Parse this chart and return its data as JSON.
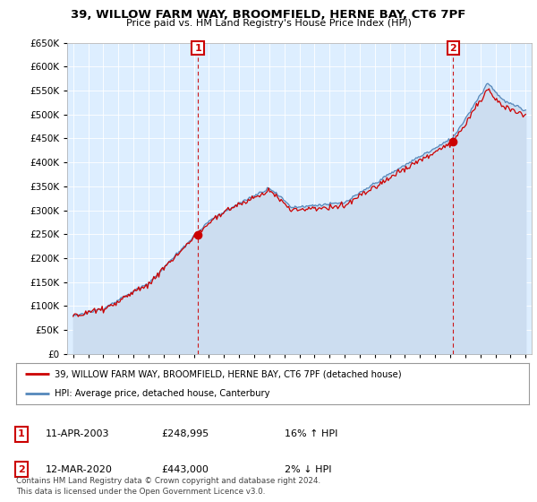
{
  "title": "39, WILLOW FARM WAY, BROOMFIELD, HERNE BAY, CT6 7PF",
  "subtitle": "Price paid vs. HM Land Registry's House Price Index (HPI)",
  "ylim": [
    0,
    650000
  ],
  "yticks": [
    0,
    50000,
    100000,
    150000,
    200000,
    250000,
    300000,
    350000,
    400000,
    450000,
    500000,
    550000,
    600000,
    650000
  ],
  "ytick_labels": [
    "£0",
    "£50K",
    "£100K",
    "£150K",
    "£200K",
    "£250K",
    "£300K",
    "£350K",
    "£400K",
    "£450K",
    "£500K",
    "£550K",
    "£600K",
    "£650K"
  ],
  "line1_color": "#cc0000",
  "line2_color": "#5588bb",
  "line2_fill_color": "#ccddf0",
  "vline_color": "#cc0000",
  "point1_year": 2003.27,
  "point1_value": 248995,
  "point2_year": 2020.19,
  "point2_value": 443000,
  "legend_label1": "39, WILLOW FARM WAY, BROOMFIELD, HERNE BAY, CT6 7PF (detached house)",
  "legend_label2": "HPI: Average price, detached house, Canterbury",
  "info1_date": "11-APR-2003",
  "info1_price": "£248,995",
  "info1_hpi": "16% ↑ HPI",
  "info2_date": "12-MAR-2020",
  "info2_price": "£443,000",
  "info2_hpi": "2% ↓ HPI",
  "footnote": "Contains HM Land Registry data © Crown copyright and database right 2024.\nThis data is licensed under the Open Government Licence v3.0.",
  "grid_color": "#ffffff",
  "plot_bg_color": "#ddeeff"
}
